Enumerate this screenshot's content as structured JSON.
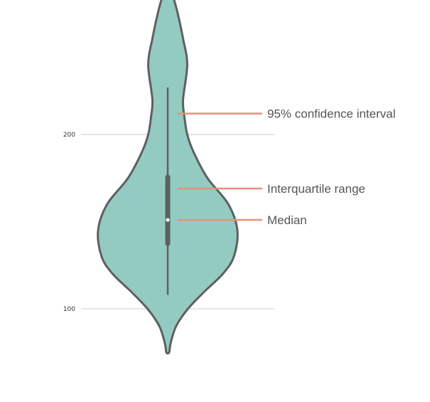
{
  "chart_data": {
    "type": "violin",
    "title": "",
    "xlabel": "",
    "ylabel": "",
    "y_ticks": [
      100,
      200
    ],
    "grid": true,
    "colors": {
      "violin_fill": "#93cbc2",
      "violin_stroke": "#5f5f5f",
      "box": "#5f5f5f",
      "median_dot": "#ffffff",
      "annotation_line": "#e8907c",
      "gridline": "#cccccc"
    },
    "summary": {
      "min": 75,
      "whisker_low": 108,
      "q1": 136,
      "median": 151,
      "q3": 177,
      "whisker_high": 227,
      "max": 292
    },
    "density_profile": [
      {
        "y": 75,
        "w": 0.02
      },
      {
        "y": 80,
        "w": 0.04
      },
      {
        "y": 90,
        "w": 0.12
      },
      {
        "y": 100,
        "w": 0.29
      },
      {
        "y": 110,
        "w": 0.53
      },
      {
        "y": 120,
        "w": 0.79
      },
      {
        "y": 130,
        "w": 0.95
      },
      {
        "y": 145,
        "w": 1.0
      },
      {
        "y": 160,
        "w": 0.87
      },
      {
        "y": 175,
        "w": 0.57
      },
      {
        "y": 190,
        "w": 0.37
      },
      {
        "y": 200,
        "w": 0.28
      },
      {
        "y": 210,
        "w": 0.24
      },
      {
        "y": 220,
        "w": 0.22
      },
      {
        "y": 240,
        "w": 0.28
      },
      {
        "y": 255,
        "w": 0.22
      },
      {
        "y": 270,
        "w": 0.14
      },
      {
        "y": 285,
        "w": 0.04
      },
      {
        "y": 292,
        "w": 0.02
      }
    ],
    "annotations": [
      {
        "label": "95% confidence interval",
        "y": 212
      },
      {
        "label": "Interquartile range",
        "y": 169
      },
      {
        "label": "Median",
        "y": 151
      }
    ]
  }
}
